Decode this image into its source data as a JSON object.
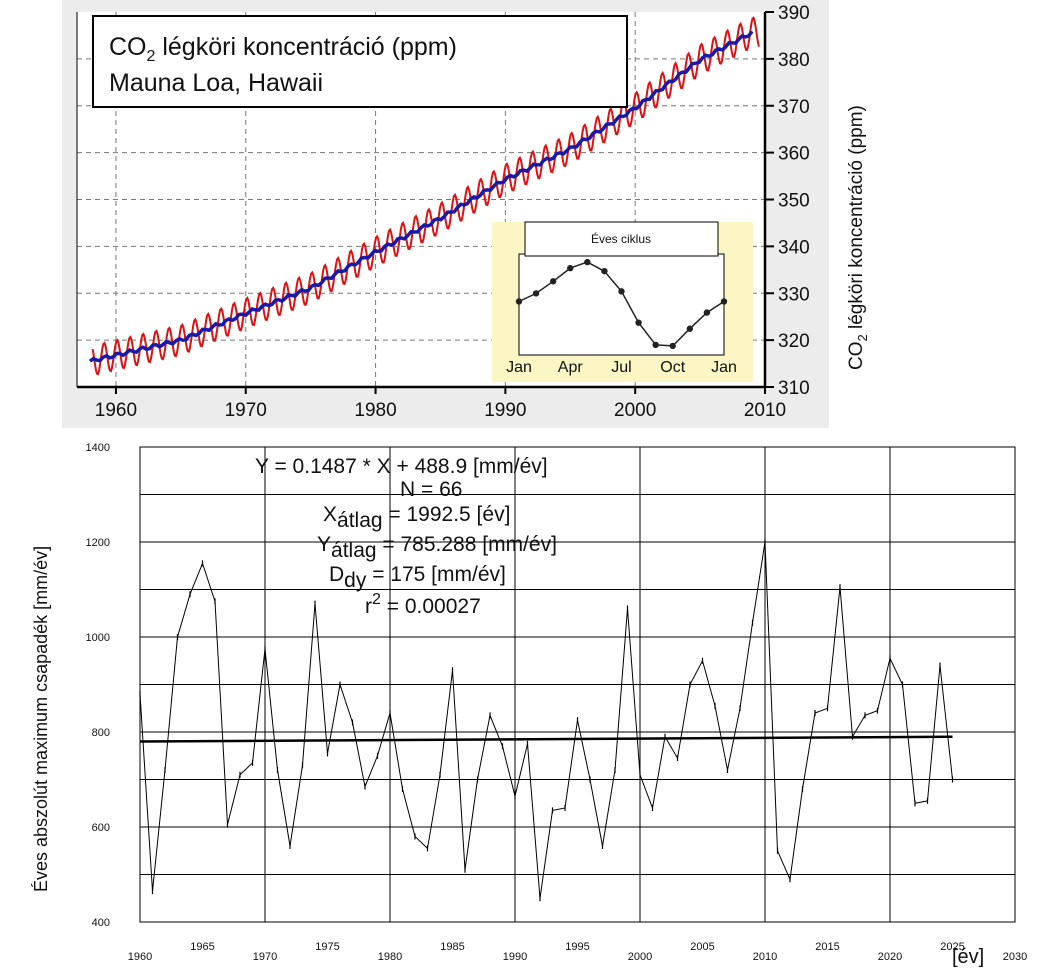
{
  "chart_data": [
    {
      "type": "line",
      "title_line1": "CO",
      "title_sub": "2",
      "title_line1_rest": " légköri koncentráció (ppm)",
      "title_line2": "Mauna Loa, Hawaii",
      "ylabel_main": "CO",
      "ylabel_sub": "2",
      "ylabel_rest": " légköri koncentráció (ppm)",
      "xlim": [
        1957,
        2010
      ],
      "ylim": [
        310,
        390
      ],
      "x_ticks": [
        "1960",
        "1970",
        "1980",
        "1990",
        "2000",
        "2010"
      ],
      "y_ticks": [
        "310",
        "320",
        "330",
        "340",
        "350",
        "360",
        "370",
        "380",
        "390"
      ],
      "grid": true,
      "series": [
        {
          "color": "#dd1111",
          "style": "monthly-seasonal",
          "x": [
            1958,
            1960,
            1965,
            1970,
            1975,
            1980,
            1985,
            1990,
            1995,
            2000,
            2005,
            2009
          ],
          "values": [
            315.5,
            316.8,
            320.0,
            325.7,
            331.1,
            338.8,
            346.0,
            354.3,
            360.8,
            369.5,
            379.8,
            385.6
          ],
          "amplitude": 3.2
        },
        {
          "color": "#1a1aa8",
          "style": "trend",
          "x": [
            1958,
            1960,
            1965,
            1970,
            1975,
            1980,
            1985,
            1990,
            1995,
            2000,
            2005,
            2009
          ],
          "values": [
            315.5,
            316.8,
            320.0,
            325.7,
            331.1,
            338.8,
            346.0,
            354.3,
            360.8,
            369.5,
            379.8,
            385.6
          ]
        }
      ],
      "inset": {
        "title": "Éves ciklus",
        "x_ticks": [
          "Jan",
          "Apr",
          "Jul",
          "Oct",
          "Jan"
        ],
        "values": [
          0.3,
          1.1,
          2.3,
          3.6,
          4.2,
          3.3,
          1.3,
          -1.8,
          -4.0,
          -4.1,
          -2.4,
          -0.8,
          0.3
        ],
        "ylim": [
          -5,
          5
        ]
      }
    },
    {
      "type": "line",
      "ylabel": "Éves abszolút maximum csapadék [mm/év]",
      "xlabel": "[év]",
      "xlim": [
        1960,
        2030
      ],
      "ylim": [
        400,
        1400
      ],
      "x_ticks": [
        "1960",
        "1965",
        "1970",
        "1975",
        "1980",
        "1985",
        "1990",
        "1995",
        "2000",
        "2005",
        "2010",
        "2015",
        "2020",
        "2025",
        "2030"
      ],
      "y_ticks": [
        "400",
        "600",
        "800",
        "1000",
        "1200",
        "1400"
      ],
      "grid": true,
      "annotations": {
        "eq": "Y = 0.1487 * X + 488.9 [mm/év]",
        "n": "N = 66",
        "x_pre": "X",
        "x_sub": "átlag",
        "x_rest": " = 1992.5 [év]",
        "y_pre": "Y",
        "y_sub": "átlag",
        "y_rest": " = 785.288 [mm/év]",
        "d_pre": "D",
        "d_sub": "dy",
        "d_rest": " = 175 [mm/év]",
        "r_pre": "r",
        "r_sup": "2",
        "r_rest": " = 0.00027"
      },
      "series": [
        {
          "color": "#000000",
          "x": [
            1960,
            1961,
            1962,
            1963,
            1964,
            1965,
            1966,
            1967,
            1968,
            1969,
            1970,
            1971,
            1972,
            1973,
            1974,
            1975,
            1976,
            1977,
            1978,
            1979,
            1980,
            1981,
            1982,
            1983,
            1984,
            1985,
            1986,
            1987,
            1988,
            1989,
            1990,
            1991,
            1992,
            1993,
            1994,
            1995,
            1996,
            1997,
            1998,
            1999,
            2000,
            2001,
            2002,
            2003,
            2004,
            2005,
            2006,
            2007,
            2008,
            2009,
            2010,
            2011,
            2012,
            2013,
            2014,
            2015,
            2016,
            2017,
            2018,
            2019,
            2020,
            2021,
            2022,
            2023,
            2024,
            2025
          ],
          "values": [
            880,
            465,
            720,
            1000,
            1090,
            1155,
            1075,
            605,
            710,
            735,
            975,
            720,
            560,
            730,
            1070,
            755,
            900,
            820,
            685,
            750,
            840,
            680,
            580,
            555,
            710,
            930,
            510,
            700,
            835,
            770,
            665,
            775,
            450,
            635,
            640,
            825,
            700,
            560,
            720,
            1060,
            710,
            640,
            790,
            745,
            900,
            950,
            855,
            720,
            850,
            1030,
            1200,
            550,
            490,
            680,
            840,
            850,
            1105,
            790,
            835,
            845,
            955,
            900,
            650,
            655,
            940,
            700
          ]
        },
        {
          "type": "trend",
          "color": "#000000",
          "x": [
            1960,
            2025
          ],
          "values": [
            780,
            790
          ]
        }
      ]
    }
  ]
}
